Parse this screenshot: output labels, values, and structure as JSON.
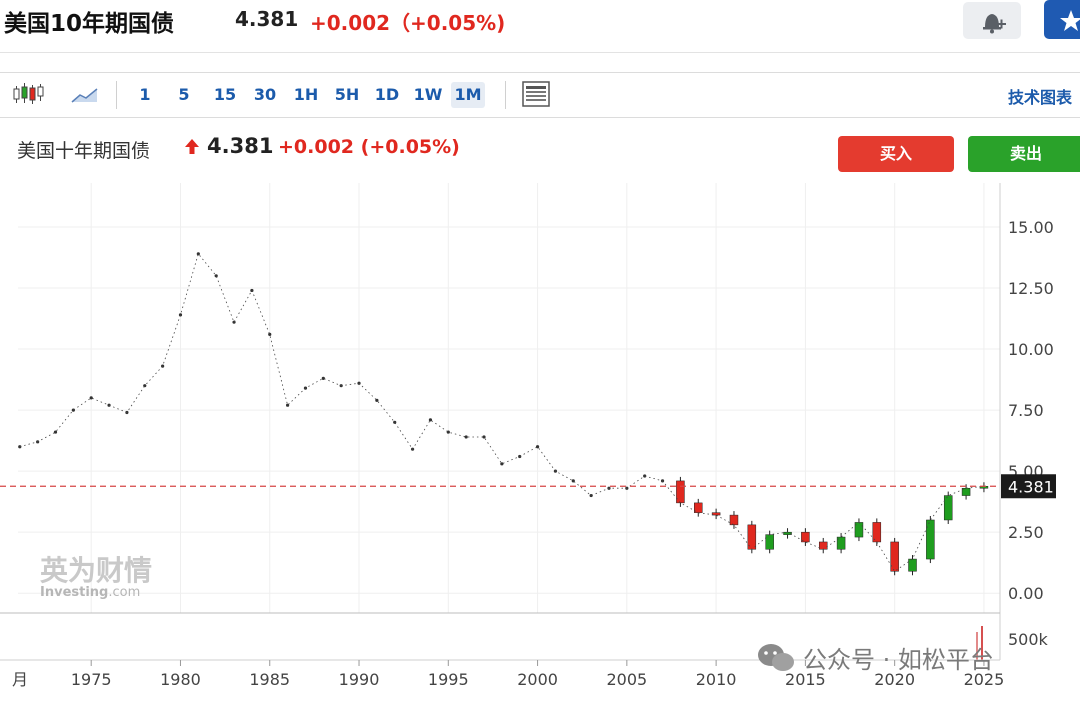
{
  "header": {
    "title": "美国10年期国债",
    "price": "4.381",
    "change": "+0.002（+0.05%)"
  },
  "toolbar": {
    "candle_icon": "candlestick-icon",
    "area_icon": "area-chart-icon",
    "intervals": [
      "1",
      "5",
      "15",
      "30",
      "1H",
      "5H",
      "1D",
      "1W",
      "1M"
    ],
    "active_interval": "1M",
    "layout_icon": "layout-icon",
    "tech_chart_label": "技术图表"
  },
  "legend": {
    "name": "美国十年期国债",
    "price": "4.381",
    "change": "+0.002",
    "change_pct": "(+0.05%)"
  },
  "trade": {
    "buy_label": "买入",
    "sell_label": "卖出"
  },
  "colors": {
    "up": "#e0281f",
    "down_candle": "#1f9d1f",
    "buy": "#e43b2f",
    "sell": "#2aa22a",
    "accent": "#1c5bab",
    "price_line": "#d64545"
  },
  "logo": {
    "cn": "英为财情",
    "en": "Investing",
    "suffix": ".com"
  },
  "watermark": "公众号 · 如松平台",
  "chart_data": {
    "type": "line",
    "title": "",
    "xlabel": "",
    "ylabel": "",
    "x": [
      1971,
      1972,
      1973,
      1974,
      1975,
      1976,
      1977,
      1978,
      1979,
      1980,
      1981,
      1982,
      1983,
      1984,
      1985,
      1986,
      1987,
      1988,
      1989,
      1990,
      1991,
      1992,
      1993,
      1994,
      1995,
      1996,
      1997,
      1998,
      1999,
      2000,
      2001,
      2002,
      2003,
      2004,
      2005,
      2006,
      2007,
      2008,
      2009,
      2010,
      2011,
      2012,
      2013,
      2014,
      2015,
      2016,
      2017,
      2018,
      2019,
      2020,
      2021,
      2022,
      2023,
      2024,
      2025
    ],
    "series": [
      {
        "values": [
          6.0,
          6.2,
          6.6,
          7.5,
          8.0,
          7.7,
          7.4,
          8.5,
          9.3,
          11.4,
          13.9,
          13.0,
          11.1,
          12.4,
          10.6,
          7.7,
          8.4,
          8.8,
          8.5,
          8.6,
          7.9,
          7.0,
          5.9,
          7.1,
          6.6,
          6.4,
          6.4,
          5.3,
          5.6,
          6.0,
          5.0,
          4.6,
          4.0,
          4.3,
          4.3,
          4.8,
          4.6,
          3.7,
          3.3,
          3.2,
          2.8,
          1.8,
          2.4,
          2.5,
          2.1,
          1.8,
          2.3,
          2.9,
          2.1,
          0.9,
          1.4,
          3.0,
          4.0,
          4.3,
          4.381
        ]
      }
    ],
    "last_value": "4.381",
    "xticks": [
      "1975",
      "1980",
      "1985",
      "1990",
      "1995",
      "2000",
      "2005",
      "2010",
      "2015",
      "2020",
      "2025"
    ],
    "x_edge_label": "月",
    "yticks": [
      "0.00",
      "2.50",
      "5.00",
      "7.50",
      "10.00",
      "12.50",
      "15.00"
    ],
    "ylim": [
      -0.4,
      16.8
    ],
    "xlim": [
      1970.9,
      2025.9
    ],
    "volume_label": "500k",
    "grid": true,
    "legend": "none"
  }
}
